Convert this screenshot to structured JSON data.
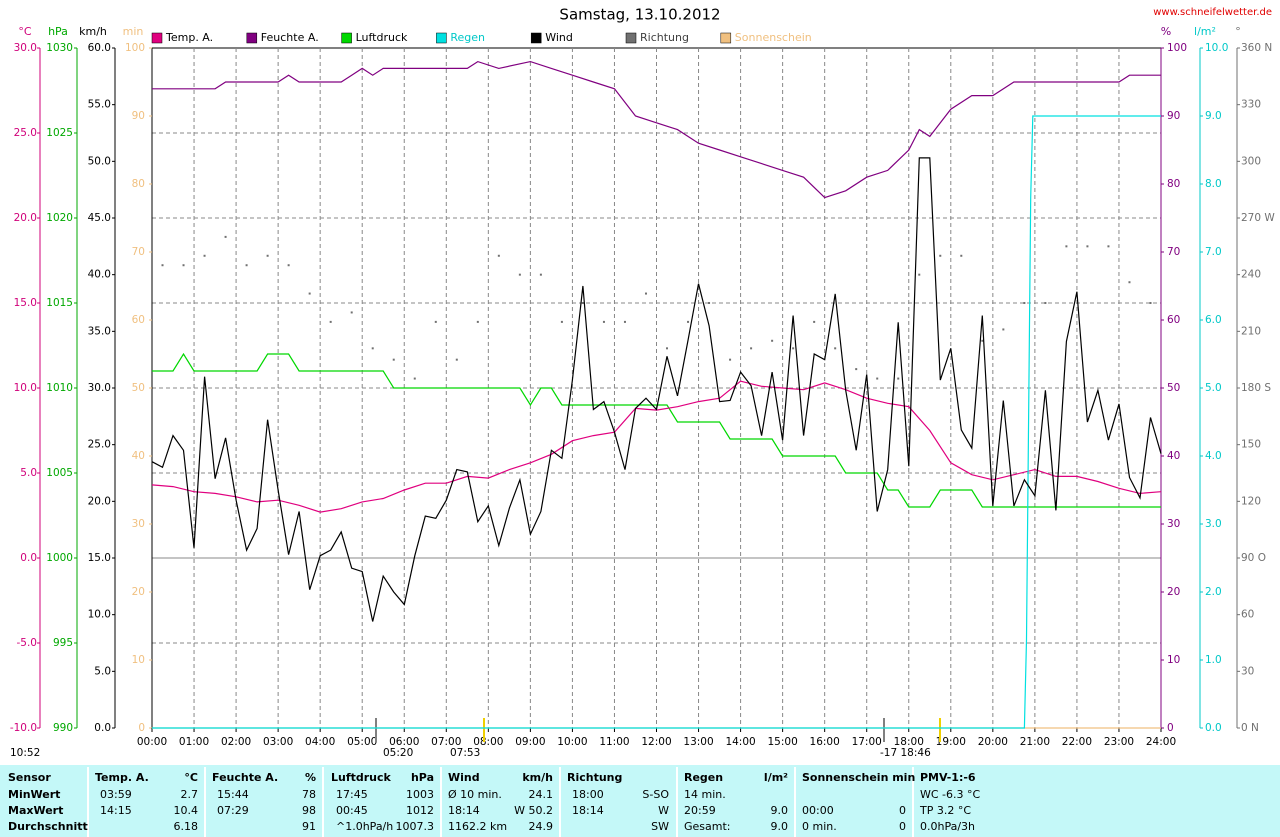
{
  "chart_data": {
    "type": "line",
    "title": "Samstag, 13.10.2012",
    "site": "www.schneifelwetter.de",
    "xlim": [
      0,
      24
    ],
    "xticks": [
      {
        "value": 0,
        "label": "00:00"
      },
      {
        "value": 1,
        "label": "01:00"
      },
      {
        "value": 2,
        "label": "02:00"
      },
      {
        "value": 3,
        "label": "03:00"
      },
      {
        "value": 4,
        "label": "04:00"
      },
      {
        "value": 5,
        "label": "05:00"
      },
      {
        "value": 6,
        "label": "06:00"
      },
      {
        "value": 7,
        "label": "07:00"
      },
      {
        "value": 8,
        "label": "08:00"
      },
      {
        "value": 9,
        "label": "09:00"
      },
      {
        "value": 10,
        "label": "10:00"
      },
      {
        "value": 11,
        "label": "11:00"
      },
      {
        "value": 12,
        "label": "12:00"
      },
      {
        "value": 13,
        "label": "13:00"
      },
      {
        "value": 14,
        "label": "14:00"
      },
      {
        "value": 15,
        "label": "15:00"
      },
      {
        "value": 16,
        "label": "16:00"
      },
      {
        "value": 17,
        "label": "17:00"
      },
      {
        "value": 18,
        "label": "18:00"
      },
      {
        "value": 19,
        "label": "19:00"
      },
      {
        "value": 20,
        "label": "20:00"
      },
      {
        "value": 21,
        "label": "21:00"
      },
      {
        "value": 22,
        "label": "22:00"
      },
      {
        "value": 23,
        "label": "23:00"
      },
      {
        "value": 24,
        "label": "24:00"
      }
    ],
    "x_grid": true,
    "axes": [
      {
        "label": "°C",
        "side": "left",
        "color": "#d0007a",
        "grid": true,
        "ylim": [
          -10,
          30
        ],
        "yticks": [
          {
            "value": -10,
            "label": "-10.0"
          },
          {
            "value": -5,
            "label": "-5.0"
          },
          {
            "value": 0,
            "label": "0.0"
          },
          {
            "value": 5,
            "label": "5.0"
          },
          {
            "value": 10,
            "label": "10.0"
          },
          {
            "value": 15,
            "label": "15.0"
          },
          {
            "value": 20,
            "label": "20.0"
          },
          {
            "value": 25,
            "label": "25.0"
          },
          {
            "value": 30,
            "label": "30.0"
          }
        ]
      },
      {
        "label": "hPa",
        "side": "left",
        "color": "#00a800",
        "grid": false,
        "ylim": [
          990,
          1030
        ],
        "yticks": [
          990,
          995,
          1000,
          1005,
          1010,
          1015,
          1020,
          1025,
          1030
        ]
      },
      {
        "label": "km/h",
        "side": "left",
        "color": "#000000",
        "grid": false,
        "ylim": [
          0,
          60
        ],
        "yticks": [
          {
            "value": 0,
            "label": "0.0"
          },
          {
            "value": 5,
            "label": "5.0"
          },
          {
            "value": 10,
            "label": "10.0"
          },
          {
            "value": 15,
            "label": "15.0"
          },
          {
            "value": 20,
            "label": "20.0"
          },
          {
            "value": 25,
            "label": "25.0"
          },
          {
            "value": 30,
            "label": "30.0"
          },
          {
            "value": 35,
            "label": "35.0"
          },
          {
            "value": 40,
            "label": "40.0"
          },
          {
            "value": 45,
            "label": "45.0"
          },
          {
            "value": 50,
            "label": "50.0"
          },
          {
            "value": 55,
            "label": "55.0"
          },
          {
            "value": 60,
            "label": "60.0"
          }
        ]
      },
      {
        "label": "min",
        "side": "left",
        "color": "#f0c080",
        "grid": false,
        "ylim": [
          0,
          100
        ],
        "yticks": [
          0,
          10,
          20,
          30,
          40,
          50,
          60,
          70,
          80,
          90,
          100
        ]
      },
      {
        "label": "%",
        "side": "right",
        "color": "#800080",
        "grid": false,
        "ylim": [
          0,
          100
        ],
        "yticks": [
          0,
          10,
          20,
          30,
          40,
          50,
          60,
          70,
          80,
          90,
          100
        ]
      },
      {
        "label": "l/m²",
        "side": "right",
        "color": "#00c8c8",
        "grid": false,
        "ylim": [
          0,
          10
        ],
        "yticks": [
          {
            "value": 0,
            "label": "0.0"
          },
          {
            "value": 1,
            "label": "1.0"
          },
          {
            "value": 2,
            "label": "2.0"
          },
          {
            "value": 3,
            "label": "3.0"
          },
          {
            "value": 4,
            "label": "4.0"
          },
          {
            "value": 5,
            "label": "5.0"
          },
          {
            "value": 6,
            "label": "6.0"
          },
          {
            "value": 7,
            "label": "7.0"
          },
          {
            "value": 8,
            "label": "8.0"
          },
          {
            "value": 9,
            "label": "9.0"
          },
          {
            "value": 10,
            "label": "10.0"
          }
        ]
      },
      {
        "label": "°",
        "side": "right",
        "color": "#707070",
        "grid": false,
        "ylim": [
          0,
          360
        ],
        "yticks": [
          {
            "value": 0,
            "label": "0 N"
          },
          30,
          60,
          {
            "value": 90,
            "label": "90 O"
          },
          120,
          150,
          {
            "value": 180,
            "label": "180 S"
          },
          210,
          240,
          {
            "value": 270,
            "label": "270 W"
          },
          300,
          330,
          {
            "value": 360,
            "label": "360 N"
          }
        ]
      }
    ],
    "series": [
      {
        "name": "Temp. A.",
        "color": "#e0007f",
        "axis": 0,
        "style": "line",
        "x": [
          0,
          0.5,
          1,
          1.5,
          2,
          2.5,
          3,
          3.5,
          4,
          4.5,
          5,
          5.5,
          6,
          6.5,
          7,
          7.5,
          8,
          8.5,
          9,
          9.5,
          10,
          10.5,
          11,
          11.5,
          12,
          12.5,
          13,
          13.5,
          14,
          14.5,
          15,
          15.5,
          16,
          16.5,
          17,
          17.5,
          18,
          18.5,
          19,
          19.5,
          20,
          20.5,
          21,
          21.5,
          22,
          22.5,
          23,
          23.5,
          24
        ],
        "values": [
          4.3,
          4.2,
          3.9,
          3.8,
          3.6,
          3.3,
          3.4,
          3.1,
          2.7,
          2.9,
          3.3,
          3.5,
          4.0,
          4.4,
          4.4,
          4.8,
          4.7,
          5.2,
          5.6,
          6.1,
          6.9,
          7.2,
          7.4,
          8.8,
          8.7,
          8.9,
          9.2,
          9.4,
          10.4,
          10.1,
          10.0,
          9.9,
          10.3,
          9.9,
          9.4,
          9.1,
          8.9,
          7.5,
          5.6,
          4.9,
          4.6,
          4.9,
          5.2,
          4.8,
          4.8,
          4.5,
          4.1,
          3.8,
          3.9
        ]
      },
      {
        "name": "Feuchte A.",
        "color": "#800080",
        "axis": 4,
        "style": "line",
        "x": [
          0,
          1.5,
          1.75,
          3,
          3.25,
          3.5,
          4.5,
          4.75,
          5,
          5.25,
          5.5,
          7.5,
          7.75,
          8.25,
          9,
          9.5,
          10,
          10.5,
          11,
          11.5,
          12,
          12.5,
          13,
          13.5,
          14,
          14.5,
          15,
          15.5,
          16,
          16.5,
          17,
          17.5,
          18,
          18.25,
          18.5,
          19,
          19.5,
          20,
          20.5,
          23,
          23.25,
          24
        ],
        "values": [
          94,
          94,
          95,
          95,
          96,
          95,
          95,
          96,
          97,
          96,
          97,
          97,
          98,
          97,
          98,
          97,
          96,
          95,
          94,
          90,
          89,
          88,
          86,
          85,
          84,
          83,
          82,
          81,
          78,
          79,
          81,
          82,
          85,
          88,
          87,
          91,
          93,
          93,
          95,
          95,
          96,
          96
        ]
      },
      {
        "name": "Luftdruck",
        "color": "#00d800",
        "axis": 1,
        "style": "line",
        "x": [
          0,
          0.5,
          0.75,
          1,
          2.5,
          2.75,
          3.25,
          3.5,
          5.5,
          5.75,
          8.75,
          9,
          9.25,
          9.5,
          9.75,
          12.25,
          12.5,
          13.5,
          13.75,
          14.75,
          15,
          16.25,
          16.5,
          17.25,
          17.5,
          17.75,
          18,
          18.5,
          18.75,
          19.5,
          19.75,
          24
        ],
        "values": [
          1011,
          1011,
          1012,
          1011,
          1011,
          1012,
          1012,
          1011,
          1011,
          1010,
          1010,
          1009,
          1010,
          1010,
          1009,
          1009,
          1008,
          1008,
          1007,
          1007,
          1006,
          1006,
          1005,
          1005,
          1004,
          1004,
          1003,
          1003,
          1004,
          1004,
          1003,
          1003
        ]
      },
      {
        "name": "Regen",
        "color": "#00e0e0",
        "axis": 5,
        "style": "line",
        "x": [
          0,
          20.75,
          20.8,
          20.9,
          20.95,
          24
        ],
        "values": [
          0,
          0,
          1.3,
          7.8,
          9,
          9
        ]
      },
      {
        "name": "Wind",
        "color": "#000000",
        "axis": 2,
        "style": "line",
        "x": [
          0,
          0.25,
          0.5,
          0.75,
          1,
          1.25,
          1.5,
          1.75,
          2,
          2.25,
          2.5,
          2.75,
          3,
          3.25,
          3.5,
          3.75,
          4,
          4.25,
          4.5,
          4.75,
          5,
          5.25,
          5.5,
          5.75,
          6,
          6.25,
          6.5,
          6.75,
          7,
          7.25,
          7.5,
          7.75,
          8,
          8.25,
          8.5,
          8.75,
          9,
          9.25,
          9.5,
          9.75,
          10,
          10.25,
          10.5,
          10.75,
          11,
          11.25,
          11.5,
          11.75,
          12,
          12.25,
          12.5,
          12.75,
          13,
          13.25,
          13.5,
          13.75,
          14,
          14.25,
          14.5,
          14.75,
          15,
          15.25,
          15.5,
          15.75,
          16,
          16.25,
          16.5,
          16.75,
          17,
          17.25,
          17.5,
          17.75,
          18,
          18.25,
          18.5,
          18.75,
          19,
          19.25,
          19.5,
          19.75,
          20,
          20.25,
          20.5,
          20.75,
          21,
          21.25,
          21.5,
          21.75,
          22,
          22.25,
          22.5,
          22.75,
          23,
          23.25,
          23.5,
          23.75,
          24
        ],
        "values": [
          23.5,
          23,
          25.8,
          24.5,
          15.9,
          31,
          22,
          25.6,
          20.1,
          15.7,
          17.6,
          27.2,
          21,
          15.3,
          19.1,
          12.2,
          15.2,
          15.7,
          17.3,
          14.1,
          13.8,
          9.4,
          13.4,
          12,
          10.9,
          15.2,
          18.7,
          18.5,
          20.1,
          22.8,
          22.6,
          18.2,
          19.6,
          16.1,
          19.4,
          21.9,
          17.1,
          19.1,
          24.5,
          23.8,
          30.7,
          39,
          28.1,
          28.8,
          26.1,
          22.8,
          28.2,
          29.1,
          28.1,
          32.8,
          29.3,
          34.2,
          39.2,
          35.5,
          28.8,
          28.9,
          31.4,
          30.2,
          25.8,
          31.4,
          25.4,
          36.4,
          25.8,
          33,
          32.5,
          38.3,
          29.8,
          24.5,
          31.2,
          19.1,
          22.8,
          35.8,
          23.1,
          50.3,
          50.3,
          30.7,
          33.5,
          26.3,
          24.7,
          36.4,
          19.6,
          28.9,
          19.6,
          21.9,
          20.5,
          29.8,
          19.2,
          34.1,
          38.5,
          27,
          29.8,
          25.4,
          28.6,
          22.1,
          20.3,
          27.4,
          24.2
        ]
      },
      {
        "name": "Richtung",
        "color": "#707070",
        "axis": 6,
        "style": "dots",
        "x": [
          0.25,
          0.75,
          1.25,
          1.75,
          2.25,
          2.75,
          3.25,
          3.75,
          4.25,
          4.75,
          5.25,
          5.75,
          6.25,
          6.75,
          7.25,
          7.75,
          8.25,
          8.75,
          9.25,
          9.75,
          10.25,
          10.75,
          11.25,
          11.75,
          12.25,
          12.75,
          13.25,
          13.75,
          14.25,
          14.75,
          15.25,
          15.75,
          16.25,
          16.75,
          17.25,
          17.75,
          18.25,
          18.75,
          19.25,
          19.75,
          20.25,
          20.75,
          21.25,
          21.75,
          22.25,
          22.75,
          23.25,
          23.75
        ],
        "values": [
          245,
          245,
          250,
          260,
          245,
          250,
          245,
          230,
          215,
          220,
          201,
          195,
          185,
          215,
          195,
          215,
          250,
          240,
          240,
          215,
          225,
          215,
          215,
          230,
          201,
          215,
          225,
          195,
          201,
          205,
          201,
          215,
          201,
          190,
          185,
          185,
          240,
          250,
          250,
          205,
          211,
          225,
          225,
          255,
          255,
          255,
          236,
          225
        ]
      },
      {
        "name": "Sonnenschein",
        "color": "#f0c080",
        "axis": 3,
        "style": "line",
        "x": [
          0,
          24
        ],
        "values": [
          0,
          0
        ]
      }
    ],
    "annotations": [
      "10:52",
      "05:20",
      "07:53",
      "-17 18:46"
    ]
  },
  "table": {
    "header": [
      "Sensor",
      "Temp. A.",
      "°C",
      "Feuchte A.",
      "%",
      "Luftdruck",
      "hPa",
      "Wind",
      "km/h",
      "Richtung",
      null,
      "Regen",
      "l/m²",
      "Sonnenschein min",
      null,
      "PMV-1:-6"
    ],
    "rows": [
      [
        "MinWert",
        "03:59",
        "2.7",
        "15:44",
        "78",
        "17:45",
        "1003",
        "Ø 10 min.",
        "24.1",
        "18:00",
        "S-SO",
        "14 min.",
        null,
        null,
        null,
        "WC -6.3 °C"
      ],
      [
        "MaxWert",
        "14:15",
        "10.4",
        "07:29",
        "98",
        "00:45",
        "1012",
        "18:14",
        "W 50.2",
        "18:14",
        "W",
        "20:59",
        "9.0",
        "00:00",
        "0",
        "TP 3.2 °C"
      ],
      [
        "Durchschnitt",
        null,
        "6.18",
        null,
        "91",
        "^1.0hPa/h",
        "1007.3",
        "1162.2 km",
        "24.9",
        null,
        "SW",
        "Gesamt:",
        "9.0",
        "0 min.",
        "0",
        "0.0hPa/3h"
      ]
    ]
  }
}
